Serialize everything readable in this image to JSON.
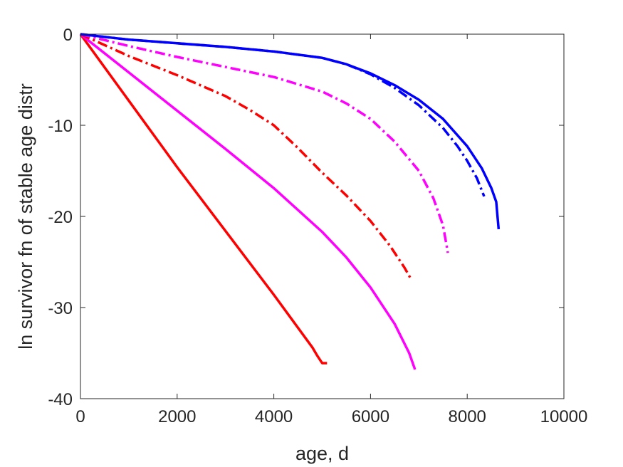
{
  "chart_data": {
    "type": "line",
    "title": "",
    "xlabel": "age, d",
    "ylabel": "ln survivor fn of stable age distr",
    "xlim": [
      0,
      10000
    ],
    "ylim": [
      -40,
      0
    ],
    "x_ticks": [
      0,
      2000,
      4000,
      6000,
      8000,
      10000
    ],
    "x_tick_labels": [
      "0",
      "2000",
      "4000",
      "6000",
      "8000",
      "10000"
    ],
    "y_ticks": [
      0,
      -10,
      -20,
      -30,
      -40
    ],
    "y_tick_labels": [
      "0",
      "-10",
      "-20",
      "-30",
      "-40"
    ],
    "grid": false,
    "legend": "none",
    "series": [
      {
        "color": "#ff0000",
        "style": "solid",
        "x": [
          0,
          1000,
          2000,
          3000,
          4000,
          4800,
          4900,
          5000,
          5100
        ],
        "y": [
          0,
          -7.3,
          -14.6,
          -21.6,
          -28.6,
          -34.4,
          -35.3,
          -36.1,
          -36.1
        ]
      },
      {
        "color": "#ff00ff",
        "style": "solid",
        "x": [
          0,
          1000,
          2000,
          3000,
          4000,
          5000,
          5500,
          6000,
          6500,
          6800,
          6900,
          6920
        ],
        "y": [
          0,
          -4.2,
          -8.4,
          -12.6,
          -16.9,
          -21.7,
          -24.5,
          -27.8,
          -31.8,
          -35.0,
          -36.5,
          -36.8
        ]
      },
      {
        "color": "#ff0000",
        "style": "dashdot",
        "x": [
          0,
          1000,
          2000,
          3000,
          3500,
          4000,
          4500,
          5000,
          5500,
          6000,
          6400,
          6700,
          6850
        ],
        "y": [
          0,
          -2.4,
          -4.5,
          -6.8,
          -8.3,
          -10.0,
          -12.5,
          -15.2,
          -17.7,
          -20.5,
          -23.2,
          -25.6,
          -27.0
        ]
      },
      {
        "color": "#ff00ff",
        "style": "dashdot",
        "x": [
          0,
          1000,
          2000,
          3000,
          4000,
          5000,
          5500,
          6000,
          6500,
          7000,
          7300,
          7500,
          7600
        ],
        "y": [
          0,
          -1.3,
          -2.5,
          -3.6,
          -4.7,
          -6.3,
          -7.6,
          -9.3,
          -11.8,
          -15.0,
          -18.0,
          -21.0,
          -24.0
        ]
      },
      {
        "color": "#0000ff",
        "style": "dashdot",
        "x": [
          0,
          1000,
          2000,
          3000,
          4000,
          5000,
          5500,
          6000,
          6500,
          7000,
          7500,
          7800,
          8000,
          8200,
          8350
        ],
        "y": [
          0,
          -0.6,
          -1.0,
          -1.4,
          -1.9,
          -2.6,
          -3.3,
          -4.4,
          -5.9,
          -7.8,
          -10.3,
          -12.3,
          -13.9,
          -15.8,
          -17.8
        ]
      },
      {
        "color": "#0000ff",
        "style": "solid",
        "x": [
          0,
          1000,
          2000,
          3000,
          4000,
          5000,
          5500,
          6000,
          6500,
          7000,
          7500,
          8000,
          8300,
          8500,
          8600,
          8650
        ],
        "y": [
          0,
          -0.6,
          -1.0,
          -1.4,
          -1.9,
          -2.6,
          -3.3,
          -4.3,
          -5.6,
          -7.2,
          -9.3,
          -12.3,
          -14.7,
          -16.9,
          -18.4,
          -21.4
        ]
      }
    ]
  }
}
